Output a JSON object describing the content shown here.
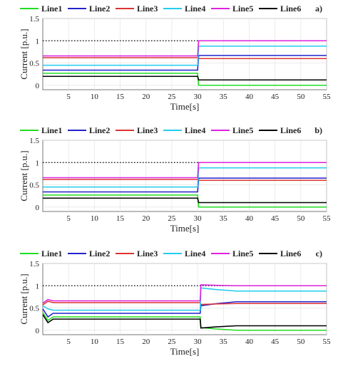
{
  "chart_data": [
    {
      "type": "line",
      "panel_label": "a)",
      "xlabel": "Time[s]",
      "ylabel": "Current [p.u.]",
      "xlim": [
        0,
        55
      ],
      "ylim": [
        -0.1,
        1.5
      ],
      "x_ticks": [
        "5",
        "10",
        "15",
        "20",
        "25",
        "30",
        "35",
        "40",
        "45",
        "50",
        "55"
      ],
      "y_ticks": [
        "0",
        "0.5",
        "1",
        "1.5"
      ],
      "grid": true,
      "legend_position": "top",
      "reference_line": {
        "y": 1,
        "style": "dotted"
      },
      "transition_time": 30,
      "series": [
        {
          "name": "Line1",
          "color": "#22dd22",
          "before": 0.27,
          "after": 0.0,
          "peak": null
        },
        {
          "name": "Line2",
          "color": "#2222cc",
          "before": 0.34,
          "after": 0.67,
          "peak": null
        },
        {
          "name": "Line3",
          "color": "#dd3333",
          "before": 0.62,
          "after": 0.6,
          "peak": null
        },
        {
          "name": "Line4",
          "color": "#22ccee",
          "before": 0.45,
          "after": 0.88,
          "peak": null
        },
        {
          "name": "Line5",
          "color": "#dd22dd",
          "before": 0.66,
          "after": 1.0,
          "peak": null
        },
        {
          "name": "Line6",
          "color": "#000000",
          "before": 0.2,
          "after": 0.12,
          "peak": null
        }
      ]
    },
    {
      "type": "line",
      "panel_label": "b)",
      "xlabel": "Time[s]",
      "ylabel": "Current [p.u.]",
      "xlim": [
        0,
        55
      ],
      "ylim": [
        -0.1,
        1.5
      ],
      "x_ticks": [
        "5",
        "10",
        "15",
        "20",
        "25",
        "30",
        "35",
        "40",
        "45",
        "50",
        "55"
      ],
      "y_ticks": [
        "0",
        "0.5",
        "1",
        "1.5"
      ],
      "grid": true,
      "legend_position": "top",
      "reference_line": {
        "y": 1,
        "style": "dotted"
      },
      "transition_time": 30,
      "series": [
        {
          "name": "Line1",
          "color": "#22dd22",
          "before": 0.27,
          "after": 0.0,
          "peak": null
        },
        {
          "name": "Line2",
          "color": "#2222cc",
          "before": 0.34,
          "after": 0.65,
          "peak": null
        },
        {
          "name": "Line3",
          "color": "#dd3333",
          "before": 0.62,
          "after": 0.6,
          "peak": null
        },
        {
          "name": "Line4",
          "color": "#22ccee",
          "before": 0.45,
          "after": 0.88,
          "peak": null
        },
        {
          "name": "Line5",
          "color": "#dd22dd",
          "before": 0.66,
          "after": 1.0,
          "peak": null
        },
        {
          "name": "Line6",
          "color": "#000000",
          "before": 0.2,
          "after": 0.1,
          "peak": null
        }
      ]
    },
    {
      "type": "line",
      "panel_label": "c)",
      "xlabel": "Time[s]",
      "ylabel": "Current [p.u.]",
      "xlim": [
        0,
        55
      ],
      "ylim": [
        -0.1,
        1.5
      ],
      "x_ticks": [
        "5",
        "10",
        "15",
        "20",
        "25",
        "30",
        "35",
        "40",
        "45",
        "50",
        "55"
      ],
      "y_ticks": [
        "0",
        "0.5",
        "1",
        "1.5"
      ],
      "grid": true,
      "legend_position": "top",
      "reference_line": {
        "y": 1,
        "style": "dotted"
      },
      "transition_time": 30.5,
      "series": [
        {
          "name": "Line1",
          "color": "#22dd22",
          "before": 0.3,
          "after": 0.0,
          "peak": 0.06
        },
        {
          "name": "Line2",
          "color": "#2222cc",
          "before": 0.38,
          "after": 0.64,
          "peak": 0.55
        },
        {
          "name": "Line3",
          "color": "#dd3333",
          "before": 0.62,
          "after": 0.6,
          "peak": 0.58
        },
        {
          "name": "Line4",
          "color": "#22ccee",
          "before": 0.45,
          "after": 0.88,
          "peak": 0.95
        },
        {
          "name": "Line5",
          "color": "#dd22dd",
          "before": 0.66,
          "after": 1.0,
          "peak": 1.02
        },
        {
          "name": "Line6",
          "color": "#000000",
          "before": 0.25,
          "after": 0.1,
          "peak": 0.05
        }
      ]
    }
  ]
}
